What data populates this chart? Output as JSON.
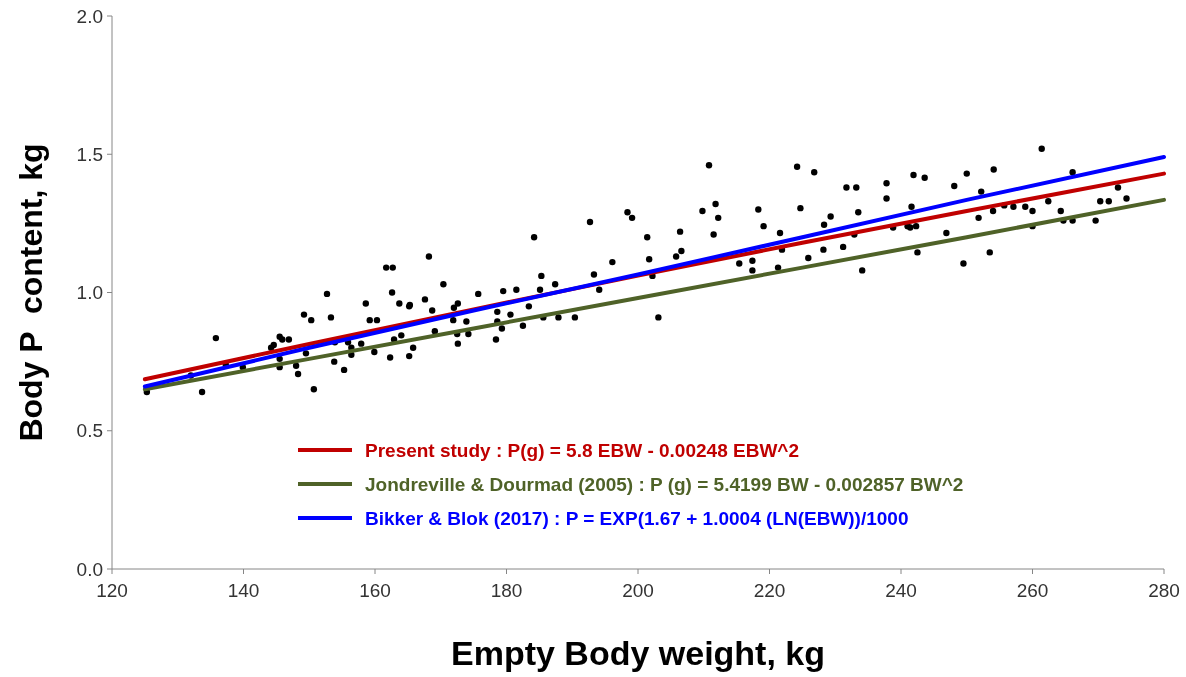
{
  "chart_data": {
    "type": "scatter",
    "xlabel": "Empty Body weight, kg",
    "ylabel": "Body P  content, kg",
    "xlim": [
      120,
      280
    ],
    "ylim": [
      0,
      2
    ],
    "xticks": [
      120,
      140,
      160,
      180,
      200,
      220,
      240,
      260,
      280
    ],
    "yticks": [
      {
        "value": 0,
        "label": "0.0"
      },
      {
        "value": 0.5,
        "label": "0.5"
      },
      {
        "value": 1,
        "label": "1.0"
      },
      {
        "value": 1.5,
        "label": "1.5"
      },
      {
        "value": 2,
        "label": "2.0"
      }
    ],
    "grid": false,
    "legend": "bottom",
    "series": [
      {
        "type": "scatter",
        "color": "#000000",
        "marker": "circle",
        "x": [
          125.3,
          133.7,
          135.8,
          132,
          137.3,
          139.9,
          144.2,
          144.6,
          145.5,
          145.9,
          146.9,
          145.5,
          145.5,
          148,
          148.3,
          149.2,
          150.3,
          150.7,
          149.5,
          152.7,
          153.3,
          153.8,
          155.3,
          153.9,
          155.9,
          156.4,
          156.4,
          157.9,
          158.6,
          159.2,
          160.3,
          159.9,
          161.7,
          162.7,
          162.6,
          163.7,
          165.3,
          162.3,
          162.9,
          165.2,
          165.8,
          164,
          168.2,
          170.4,
          167.6,
          165.2,
          168.7,
          172.6,
          172,
          171.9,
          173.9,
          172.5,
          172.6,
          174.2,
          169.1,
          175.7,
          179.5,
          181.5,
          178.6,
          178.6,
          179.3,
          178.4,
          180.6,
          182.5,
          183.4,
          184.2,
          185.3,
          185.1,
          187.4,
          185.6,
          187.9,
          190.4,
          192.7,
          193.3,
          194.1,
          196.1,
          198.4,
          199.1,
          201.4,
          201.7,
          202.2,
          203.1,
          205.8,
          206.6,
          206.4,
          209.8,
          210.8,
          211.8,
          212.2,
          211.5,
          215.4,
          217.4,
          217.4,
          218.3,
          219.1,
          224.2,
          226.8,
          224.7,
          221.6,
          221.9,
          221.3,
          225.9,
          228.3,
          229.3,
          228.2,
          231.2,
          231.7,
          233.2,
          232.9,
          233.5,
          234.1,
          237.8,
          237.8,
          238.8,
          241.6,
          241.9,
          243.6,
          241,
          241.4,
          242.3,
          242.5,
          246.9,
          248.1,
          250,
          252.2,
          251.8,
          249.5,
          253.5,
          254.1,
          254,
          255.7,
          257.1,
          258.9,
          260,
          260,
          261.4,
          262.4,
          264.3,
          264.7,
          266.1,
          266.1,
          269.6,
          270.3,
          271.6,
          273,
          274.3
        ],
        "values": [
          0.64,
          0.64,
          0.835,
          0.7,
          0.74,
          0.73,
          0.8,
          0.81,
          0.84,
          0.83,
          0.83,
          0.76,
          0.73,
          0.735,
          0.705,
          0.92,
          0.9,
          0.65,
          0.78,
          0.995,
          0.91,
          0.75,
          0.72,
          0.82,
          0.82,
          0.8,
          0.775,
          0.815,
          0.96,
          0.9,
          0.9,
          0.785,
          1.09,
          1.09,
          1.0,
          0.96,
          0.955,
          0.765,
          0.83,
          0.77,
          0.8,
          0.845,
          1.13,
          1.03,
          0.975,
          0.95,
          0.935,
          0.96,
          0.945,
          0.9,
          0.895,
          0.85,
          0.815,
          0.85,
          0.86,
          0.995,
          1.005,
          1.01,
          0.93,
          0.895,
          0.87,
          0.83,
          0.92,
          0.88,
          0.95,
          1.2,
          1.06,
          1.01,
          1.03,
          0.91,
          0.91,
          0.91,
          1.255,
          1.065,
          1.01,
          1.11,
          1.29,
          1.27,
          1.2,
          1.12,
          1.06,
          0.91,
          1.13,
          1.15,
          1.22,
          1.295,
          1.46,
          1.32,
          1.27,
          1.21,
          1.105,
          1.115,
          1.08,
          1.3,
          1.24,
          1.455,
          1.435,
          1.305,
          1.215,
          1.155,
          1.09,
          1.125,
          1.245,
          1.275,
          1.155,
          1.165,
          1.38,
          1.38,
          1.21,
          1.29,
          1.08,
          1.395,
          1.34,
          1.235,
          1.31,
          1.425,
          1.415,
          1.24,
          1.235,
          1.24,
          1.145,
          1.215,
          1.385,
          1.43,
          1.365,
          1.27,
          1.105,
          1.145,
          1.445,
          1.295,
          1.315,
          1.31,
          1.31,
          1.295,
          1.24,
          1.52,
          1.33,
          1.295,
          1.26,
          1.435,
          1.26,
          1.26,
          1.33,
          1.33,
          1.38,
          1.34
        ]
      },
      {
        "type": "line",
        "name": "Present study : P(g) = 5.8 EBW - 0.00248 EBW^2",
        "color": "#c00000",
        "line_style": "solid",
        "x": [
          125,
          150,
          175,
          200,
          225,
          250,
          280
        ],
        "values": [
          0.686,
          0.814,
          0.939,
          1.061,
          1.18,
          1.295,
          1.43
        ]
      },
      {
        "type": "line",
        "name": "Jondreville & Dourmad (2005) : P (g) =  5.4199 BW - 0.002857 BW^2",
        "color": "#4f6228",
        "line_style": "solid",
        "x": [
          125,
          150,
          175,
          200,
          225,
          250,
          280
        ],
        "values": [
          0.65,
          0.76,
          0.87,
          0.98,
          1.09,
          1.2,
          1.335
        ]
      },
      {
        "type": "line",
        "name": "Bikker & Blok (2017) : P = EXP(1.67 + 1.0004 (LN(EBW))/1000",
        "color": "#0000ff",
        "line_style": "solid",
        "x": [
          125,
          150,
          175,
          200,
          225,
          250,
          280
        ],
        "values": [
          0.66,
          0.8,
          0.935,
          1.065,
          1.2,
          1.335,
          1.49
        ]
      }
    ]
  }
}
